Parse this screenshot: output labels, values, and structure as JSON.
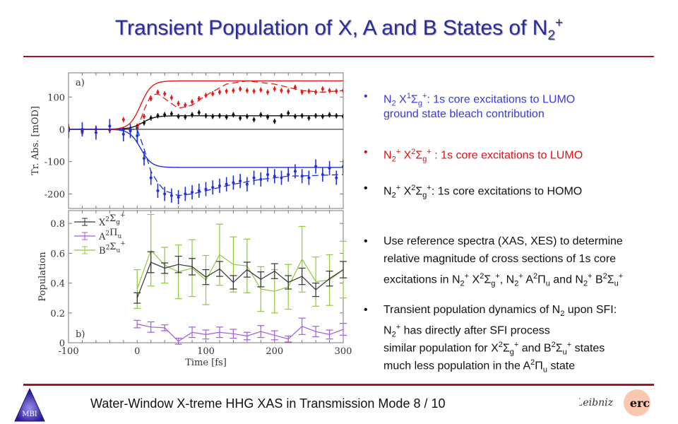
{
  "title": {
    "main": "Transient Population of X, A and B States of N",
    "sub": "2",
    "sup": "+"
  },
  "bullets": [
    {
      "color": "#3a3ad6",
      "lines": [
        [
          [
            "N",
            ""
          ],
          [
            "2",
            "sub"
          ],
          [
            " X",
            ""
          ],
          [
            "1",
            "sup"
          ],
          [
            "Σ",
            ""
          ],
          [
            "g",
            "sub"
          ],
          [
            "+",
            "sup"
          ],
          [
            ": 1s core excitations to LUMO",
            ""
          ]
        ],
        [
          [
            "ground state bleach contribution",
            ""
          ]
        ]
      ]
    },
    {
      "color": "#e01010",
      "lines": [
        [
          [
            "N",
            ""
          ],
          [
            "2",
            "sub"
          ],
          [
            "+",
            "sup"
          ],
          [
            " X",
            ""
          ],
          [
            "2",
            "sup"
          ],
          [
            "Σ",
            ""
          ],
          [
            "g",
            "sub"
          ],
          [
            "+",
            "sup"
          ],
          [
            " : 1s core excitations to LUMO",
            ""
          ]
        ]
      ]
    },
    {
      "color": "#111111",
      "lines": [
        [
          [
            "N",
            ""
          ],
          [
            "2",
            "sub"
          ],
          [
            "+",
            "sup"
          ],
          [
            " X",
            ""
          ],
          [
            "2",
            "sup"
          ],
          [
            "Σ",
            ""
          ],
          [
            "g",
            "sub"
          ],
          [
            "+",
            "sup"
          ],
          [
            ": 1s core excitations to HOMO",
            ""
          ]
        ]
      ]
    },
    {
      "color": "#111111",
      "lines": [
        [
          [
            "Use reference  spectra (XAS, XES) to determine",
            ""
          ]
        ],
        [
          [
            "relative magnitude of cross sections of 1s core",
            ""
          ]
        ],
        [
          [
            "excitations in N",
            ""
          ],
          [
            "2",
            "sub"
          ],
          [
            "+",
            "sup"
          ],
          [
            " X",
            ""
          ],
          [
            "2",
            "sup"
          ],
          [
            "Σ",
            ""
          ],
          [
            "g",
            "sub"
          ],
          [
            "+",
            "sup"
          ],
          [
            ", N",
            ""
          ],
          [
            "2",
            "sub"
          ],
          [
            "+",
            "sup"
          ],
          [
            " A",
            ""
          ],
          [
            "2",
            "sup"
          ],
          [
            "Π",
            ""
          ],
          [
            "u",
            "sub"
          ],
          [
            " and N",
            ""
          ],
          [
            "2",
            "sub"
          ],
          [
            "+",
            "sup"
          ],
          [
            " B",
            ""
          ],
          [
            "2",
            "sup"
          ],
          [
            "Σ",
            ""
          ],
          [
            "u",
            "sub"
          ],
          [
            "+",
            "sup"
          ]
        ]
      ]
    },
    {
      "color": "#111111",
      "lines": [
        [
          [
            "Transient population dynamics of N",
            ""
          ],
          [
            "2",
            "sub"
          ],
          [
            " upon SFI:",
            ""
          ]
        ],
        [
          [
            "N",
            ""
          ],
          [
            "2",
            "sub"
          ],
          [
            "+",
            "sup"
          ],
          [
            " has directly after SFI process",
            ""
          ]
        ],
        [
          [
            "similar population for X",
            ""
          ],
          [
            "2",
            "sup"
          ],
          [
            "Σ",
            ""
          ],
          [
            "g",
            "sub"
          ],
          [
            "+",
            "sup"
          ],
          [
            "  and B",
            ""
          ],
          [
            "2",
            "sup"
          ],
          [
            "Σ",
            ""
          ],
          [
            "u",
            "sub"
          ],
          [
            "+",
            "sup"
          ],
          [
            " states",
            ""
          ]
        ],
        [
          [
            "much less population in the A",
            ""
          ],
          [
            "2",
            "sup"
          ],
          [
            "Π",
            ""
          ],
          [
            "u",
            "sub"
          ],
          [
            " state",
            ""
          ]
        ]
      ]
    }
  ],
  "bullet_symbol": "•",
  "footer": {
    "text": "Water-Window X-treme HHG XAS in Transmission Mode  8 / 10",
    "logo_left": "MBI",
    "logo_right_1": "Leibniz",
    "logo_right_2": "erc"
  },
  "chart_data": [
    {
      "type": "line",
      "panel_label": "a)",
      "ylabel": "Tr. Abs. [mOD]",
      "xlim": [
        -100,
        300
      ],
      "ylim": [
        -245,
        175
      ],
      "yticks": [
        -200,
        -100,
        0,
        100
      ],
      "ytick_labels": [
        "-200",
        "-100",
        "0",
        "100"
      ],
      "series": [
        {
          "name": "black data",
          "color": "#111111",
          "x": [
            -100,
            -80,
            -60,
            -40,
            -20,
            -10,
            0,
            10,
            20,
            30,
            40,
            50,
            60,
            70,
            80,
            90,
            100,
            110,
            120,
            130,
            140,
            150,
            160,
            170,
            180,
            190,
            200,
            210,
            220,
            230,
            240,
            250,
            260,
            270,
            280,
            290,
            300
          ],
          "y": [
            2,
            -5,
            0,
            -2,
            0,
            0,
            5,
            20,
            35,
            42,
            45,
            48,
            40,
            38,
            45,
            52,
            42,
            40,
            42,
            38,
            45,
            35,
            40,
            30,
            45,
            38,
            25,
            42,
            50,
            40,
            42,
            35,
            42,
            40,
            45,
            42,
            40
          ]
        },
        {
          "name": "red data",
          "color": "#e81818",
          "x": [
            -100,
            -80,
            -60,
            -40,
            -20,
            -10,
            0,
            10,
            20,
            30,
            40,
            50,
            60,
            70,
            80,
            90,
            100,
            110,
            120,
            130,
            140,
            150,
            160,
            170,
            180,
            190,
            200,
            210,
            220,
            230,
            240,
            250,
            260,
            270,
            280,
            290,
            300
          ],
          "y": [
            5,
            -10,
            0,
            -2,
            30,
            0,
            10,
            40,
            95,
            115,
            110,
            98,
            80,
            75,
            85,
            95,
            105,
            110,
            115,
            118,
            120,
            125,
            120,
            118,
            122,
            115,
            125,
            120,
            118,
            130,
            115,
            118,
            115,
            125,
            120,
            118,
            120
          ]
        },
        {
          "name": "blue data",
          "color": "#1d2fe0",
          "x": [
            -100,
            -80,
            -60,
            -40,
            -20,
            -10,
            0,
            10,
            20,
            30,
            40,
            50,
            60,
            70,
            80,
            90,
            100,
            110,
            120,
            130,
            140,
            150,
            160,
            170,
            180,
            190,
            200,
            210,
            220,
            230,
            240,
            250,
            260,
            270,
            280,
            290,
            300
          ],
          "y": [
            -5,
            0,
            -10,
            10,
            -15,
            -5,
            -20,
            -90,
            -150,
            -190,
            -200,
            -205,
            -210,
            -200,
            -195,
            -190,
            -185,
            -180,
            -175,
            -170,
            -165,
            -160,
            -170,
            -150,
            -155,
            -140,
            -145,
            -150,
            -140,
            -130,
            -145,
            -150,
            -115,
            -140,
            -120,
            -150,
            -115
          ]
        },
        {
          "name": "black fit",
          "color": "#111111",
          "fit": {
            "amp": 42,
            "t0": 8,
            "w": 9
          }
        },
        {
          "name": "red fit",
          "color": "#e81818",
          "fit": {
            "amp": 150,
            "t0": 5,
            "w": 8
          }
        },
        {
          "name": "blue fit",
          "color": "#1d2fe0",
          "fit": {
            "amp": -118,
            "t0": 5,
            "w": 8
          }
        },
        {
          "name": "red model",
          "color": "#e81818",
          "dashed": true,
          "x": [
            -100,
            0,
            10,
            20,
            30,
            40,
            60,
            80,
            100,
            130,
            160,
            200,
            240,
            270,
            300
          ],
          "y": [
            0,
            0,
            60,
            105,
            110,
            95,
            65,
            75,
            105,
            140,
            150,
            140,
            120,
            115,
            120
          ]
        },
        {
          "name": "blue model",
          "color": "#1d2fe0",
          "dashed": true,
          "x": [
            -100,
            0,
            10,
            20,
            30,
            40,
            60,
            80,
            100,
            140,
            180,
            220,
            260,
            300
          ],
          "y": [
            0,
            0,
            -60,
            -130,
            -165,
            -190,
            -205,
            -200,
            -190,
            -170,
            -155,
            -145,
            -143,
            -140
          ]
        }
      ]
    },
    {
      "type": "line",
      "panel_label": "b)",
      "xlabel": "Time [fs]",
      "ylabel": "Population",
      "xlim": [
        -100,
        300
      ],
      "ylim": [
        0,
        0.886
      ],
      "xticks": [
        -100,
        0,
        100,
        200,
        300
      ],
      "xtick_labels": [
        "-100",
        "0",
        "100",
        "200",
        "300"
      ],
      "yticks": [
        0,
        0.2,
        0.4,
        0.6,
        0.8
      ],
      "ytick_labels": [
        "0",
        "0.2",
        "0.4",
        "0.6",
        "0.8"
      ],
      "x": [
        0,
        20,
        40,
        60,
        80,
        100,
        120,
        140,
        160,
        180,
        200,
        220,
        240,
        260,
        280,
        300
      ],
      "series": [
        {
          "name": "X²Σg⁺",
          "label": "X",
          "sup": "2",
          "sym": "Σ",
          "sub": "g",
          "sup2": "+",
          "color": "#333333",
          "y": [
            0.3,
            0.54,
            0.5,
            0.525,
            0.51,
            0.44,
            0.495,
            0.405,
            0.49,
            0.425,
            0.48,
            0.405,
            0.445,
            0.355,
            0.43,
            0.49
          ],
          "err": [
            0.035,
            0.07,
            0.035,
            0.055,
            0.055,
            0.05,
            0.05,
            0.045,
            0.05,
            0.05,
            0.05,
            0.045,
            0.055,
            0.045,
            0.05,
            0.055
          ]
        },
        {
          "name": "A²Πu",
          "label": "A",
          "sup": "2",
          "sym": "Π",
          "sub": "u",
          "sup2": "",
          "color": "#a35be0",
          "y": [
            0.125,
            0.105,
            0.1,
            0.01,
            0.07,
            0.055,
            0.07,
            0.06,
            0.045,
            0.075,
            0.05,
            0.025,
            0.11,
            0.075,
            0.055,
            0.09
          ],
          "err": [
            0.025,
            0.035,
            0.02,
            0.02,
            0.035,
            0.03,
            0.035,
            0.03,
            0.025,
            0.04,
            0.03,
            0.02,
            0.055,
            0.035,
            0.03,
            0.04
          ]
        },
        {
          "name": "B²Σu⁺",
          "label": "B",
          "sup": "2",
          "sym": "Σ",
          "sub": "u",
          "sup2": "+",
          "color": "#8fc83a",
          "y": [
            0.36,
            0.62,
            0.52,
            0.475,
            0.5,
            0.42,
            0.59,
            0.525,
            0.515,
            0.36,
            0.345,
            0.375,
            0.56,
            0.41,
            0.42,
            0.49
          ],
          "err": [
            0.13,
            0.24,
            0.12,
            0.18,
            0.19,
            0.165,
            0.205,
            0.185,
            0.18,
            0.15,
            0.145,
            0.15,
            0.22,
            0.165,
            0.17,
            0.19
          ]
        }
      ]
    }
  ]
}
